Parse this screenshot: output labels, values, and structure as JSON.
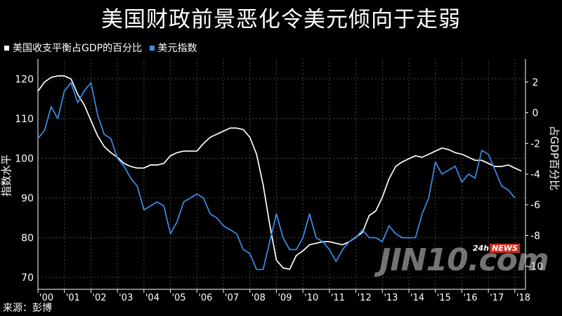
{
  "title": "美国财政前景恶化令美元倾向于走弱",
  "source": "来源：彭博",
  "watermark": {
    "main": "JIN10.com",
    "badge_prefix": "24h",
    "badge_news": "NEWS"
  },
  "chart_data": {
    "type": "line",
    "legend_position": "top-left",
    "xlabel": "",
    "y_left_label": "指数水平",
    "y_right_label": "占GDP百分比",
    "x_ticks": [
      "'00",
      "'01",
      "'02",
      "'03",
      "'04",
      "'05",
      "'06",
      "'07",
      "'08",
      "'09",
      "'10",
      "'11",
      "'12",
      "'13",
      "'14",
      "'15",
      "'16",
      "'17",
      "'18"
    ],
    "xlim": [
      2000.0,
      2018.4
    ],
    "y_left_lim": [
      67,
      125
    ],
    "y_left_ticks": [
      70,
      80,
      90,
      100,
      110,
      120
    ],
    "y_right_lim": [
      -11.5,
      3.5
    ],
    "y_right_ticks": [
      2,
      0,
      -2,
      -4,
      -6,
      -8,
      -10
    ],
    "series": [
      {
        "name": "美国收支平衡占GDP的百分比",
        "color": "#ffffff",
        "axis": "right",
        "points": [
          [
            2000.0,
            1.4
          ],
          [
            2000.25,
            2.0
          ],
          [
            2000.5,
            2.3
          ],
          [
            2000.75,
            2.4
          ],
          [
            2001.0,
            2.4
          ],
          [
            2001.25,
            2.2
          ],
          [
            2001.5,
            1.2
          ],
          [
            2001.75,
            0.5
          ],
          [
            2002.0,
            -0.5
          ],
          [
            2002.25,
            -1.5
          ],
          [
            2002.5,
            -2.2
          ],
          [
            2002.75,
            -2.6
          ],
          [
            2003.0,
            -2.9
          ],
          [
            2003.25,
            -3.3
          ],
          [
            2003.5,
            -3.5
          ],
          [
            2003.75,
            -3.6
          ],
          [
            2004.0,
            -3.6
          ],
          [
            2004.25,
            -3.4
          ],
          [
            2004.5,
            -3.4
          ],
          [
            2004.75,
            -3.3
          ],
          [
            2005.0,
            -2.8
          ],
          [
            2005.25,
            -2.6
          ],
          [
            2005.5,
            -2.5
          ],
          [
            2005.75,
            -2.5
          ],
          [
            2006.0,
            -2.5
          ],
          [
            2006.25,
            -2.0
          ],
          [
            2006.5,
            -1.6
          ],
          [
            2006.75,
            -1.4
          ],
          [
            2007.0,
            -1.2
          ],
          [
            2007.25,
            -1.0
          ],
          [
            2007.5,
            -1.0
          ],
          [
            2007.75,
            -1.1
          ],
          [
            2008.0,
            -1.6
          ],
          [
            2008.25,
            -2.7
          ],
          [
            2008.5,
            -4.7
          ],
          [
            2008.75,
            -7.3
          ],
          [
            2009.0,
            -9.6
          ],
          [
            2009.25,
            -10.1
          ],
          [
            2009.5,
            -10.2
          ],
          [
            2009.75,
            -9.3
          ],
          [
            2010.0,
            -9.0
          ],
          [
            2010.25,
            -8.6
          ],
          [
            2010.5,
            -8.5
          ],
          [
            2010.75,
            -8.4
          ],
          [
            2011.0,
            -8.4
          ],
          [
            2011.25,
            -8.5
          ],
          [
            2011.5,
            -8.6
          ],
          [
            2011.75,
            -8.4
          ],
          [
            2012.0,
            -8.1
          ],
          [
            2012.25,
            -7.8
          ],
          [
            2012.5,
            -6.7
          ],
          [
            2012.75,
            -6.4
          ],
          [
            2013.0,
            -5.5
          ],
          [
            2013.25,
            -4.3
          ],
          [
            2013.5,
            -3.5
          ],
          [
            2013.75,
            -3.2
          ],
          [
            2014.0,
            -3.0
          ],
          [
            2014.25,
            -2.8
          ],
          [
            2014.5,
            -2.9
          ],
          [
            2014.75,
            -2.7
          ],
          [
            2015.0,
            -2.5
          ],
          [
            2015.25,
            -2.3
          ],
          [
            2015.5,
            -2.4
          ],
          [
            2015.75,
            -2.6
          ],
          [
            2016.0,
            -2.7
          ],
          [
            2016.25,
            -2.9
          ],
          [
            2016.5,
            -3.1
          ],
          [
            2016.75,
            -3.1
          ],
          [
            2017.0,
            -3.3
          ],
          [
            2017.25,
            -3.5
          ],
          [
            2017.5,
            -3.5
          ],
          [
            2017.75,
            -3.4
          ],
          [
            2018.0,
            -3.6
          ],
          [
            2018.25,
            -3.8
          ]
        ]
      },
      {
        "name": "美元指数",
        "color": "#3b8fe8",
        "axis": "left",
        "points": [
          [
            2000.0,
            105
          ],
          [
            2000.25,
            107
          ],
          [
            2000.5,
            113
          ],
          [
            2000.75,
            110
          ],
          [
            2001.0,
            117
          ],
          [
            2001.25,
            119
          ],
          [
            2001.5,
            114
          ],
          [
            2001.75,
            117
          ],
          [
            2002.0,
            119
          ],
          [
            2002.25,
            111
          ],
          [
            2002.5,
            106
          ],
          [
            2002.75,
            105
          ],
          [
            2003.0,
            100
          ],
          [
            2003.25,
            98
          ],
          [
            2003.5,
            95
          ],
          [
            2003.75,
            93
          ],
          [
            2004.0,
            87
          ],
          [
            2004.25,
            88
          ],
          [
            2004.5,
            89
          ],
          [
            2004.75,
            88
          ],
          [
            2005.0,
            81
          ],
          [
            2005.25,
            84
          ],
          [
            2005.5,
            89
          ],
          [
            2005.75,
            90
          ],
          [
            2006.0,
            91
          ],
          [
            2006.25,
            90
          ],
          [
            2006.5,
            86
          ],
          [
            2006.75,
            85
          ],
          [
            2007.0,
            83
          ],
          [
            2007.25,
            82
          ],
          [
            2007.5,
            81
          ],
          [
            2007.75,
            77
          ],
          [
            2008.0,
            76
          ],
          [
            2008.25,
            72
          ],
          [
            2008.5,
            72
          ],
          [
            2008.75,
            79
          ],
          [
            2009.0,
            86
          ],
          [
            2009.25,
            80
          ],
          [
            2009.5,
            77
          ],
          [
            2009.75,
            77
          ],
          [
            2010.0,
            80
          ],
          [
            2010.25,
            86
          ],
          [
            2010.5,
            80
          ],
          [
            2010.75,
            79
          ],
          [
            2011.0,
            77
          ],
          [
            2011.25,
            74
          ],
          [
            2011.5,
            77
          ],
          [
            2011.75,
            79
          ],
          [
            2012.0,
            80
          ],
          [
            2012.25,
            82
          ],
          [
            2012.5,
            80
          ],
          [
            2012.75,
            80
          ],
          [
            2013.0,
            79
          ],
          [
            2013.25,
            83
          ],
          [
            2013.5,
            81
          ],
          [
            2013.75,
            80
          ],
          [
            2014.0,
            80
          ],
          [
            2014.25,
            80
          ],
          [
            2014.5,
            86
          ],
          [
            2014.75,
            90
          ],
          [
            2015.0,
            99
          ],
          [
            2015.25,
            96
          ],
          [
            2015.5,
            97
          ],
          [
            2015.75,
            98
          ],
          [
            2016.0,
            94
          ],
          [
            2016.25,
            96
          ],
          [
            2016.5,
            95
          ],
          [
            2016.75,
            102
          ],
          [
            2017.0,
            101
          ],
          [
            2017.25,
            97
          ],
          [
            2017.5,
            93
          ],
          [
            2017.75,
            92
          ],
          [
            2018.0,
            90
          ]
        ]
      }
    ]
  }
}
